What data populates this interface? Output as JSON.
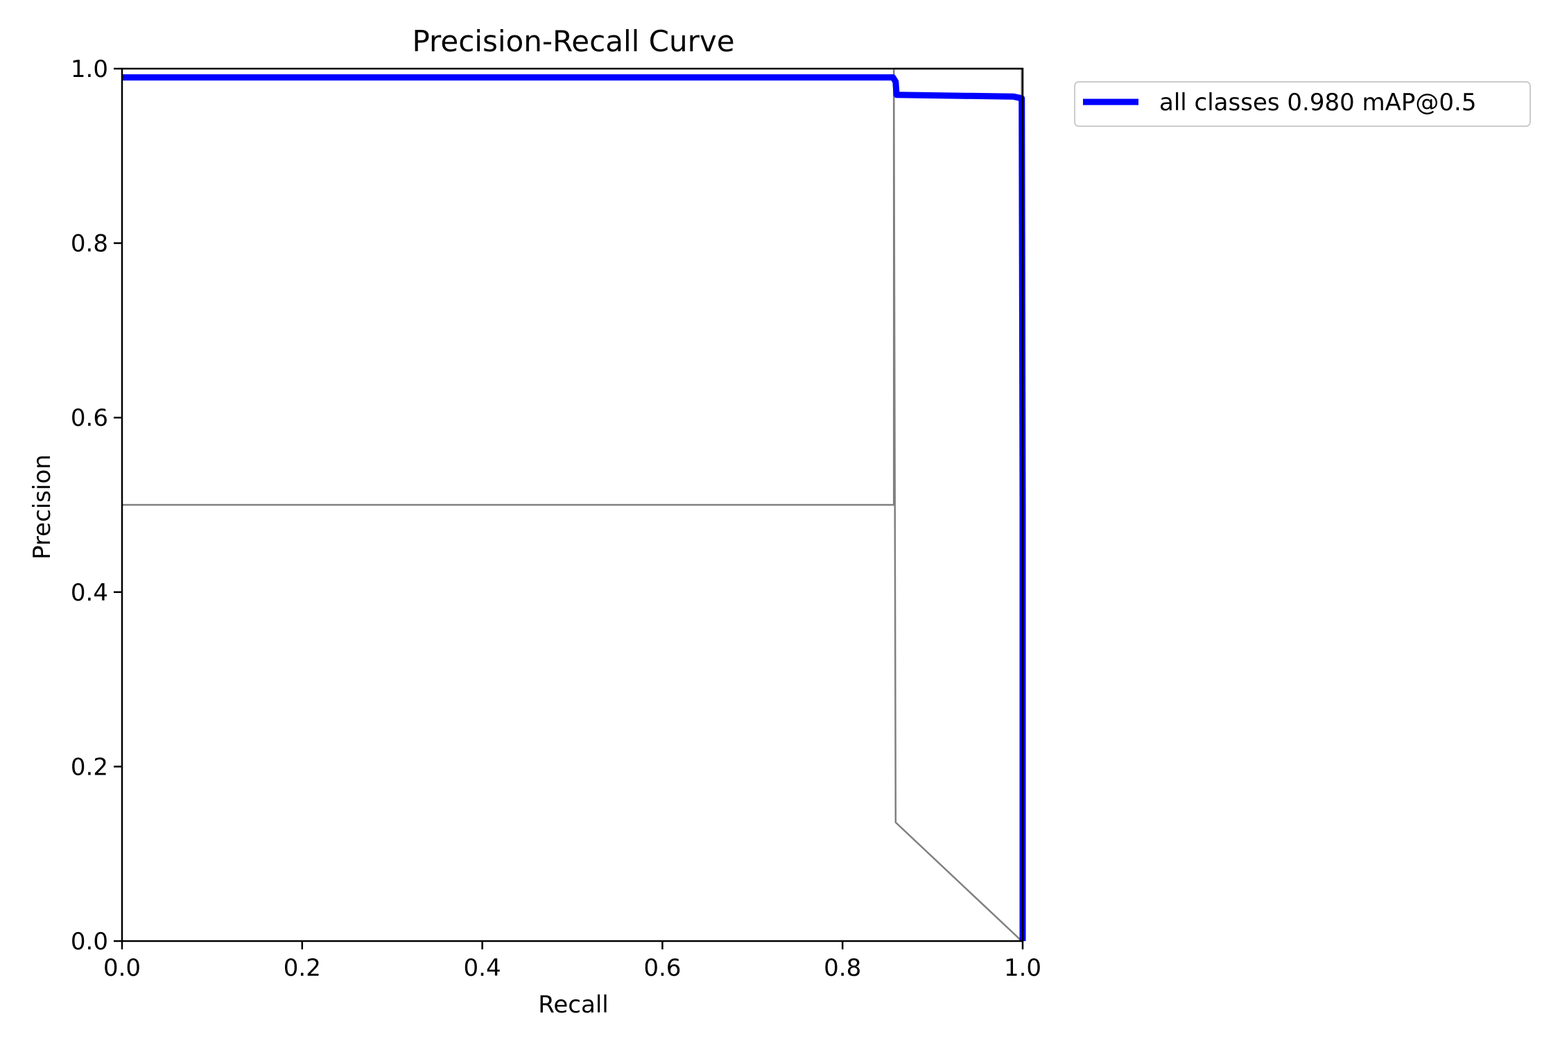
{
  "chart_data": {
    "type": "line",
    "title": "Precision-Recall Curve",
    "xlabel": "Recall",
    "ylabel": "Precision",
    "xlim": [
      0.0,
      1.0
    ],
    "ylim": [
      0.0,
      1.0
    ],
    "xticks": [
      0.0,
      0.2,
      0.4,
      0.6,
      0.8,
      1.0
    ],
    "yticks": [
      0.0,
      0.2,
      0.4,
      0.6,
      0.8,
      1.0
    ],
    "xtick_labels": [
      "0.0",
      "0.2",
      "0.4",
      "0.6",
      "0.8",
      "1.0"
    ],
    "ytick_labels": [
      "0.0",
      "0.2",
      "0.4",
      "0.6",
      "0.8",
      "1.0"
    ],
    "grid": false,
    "legend_position": "upper-right-outside",
    "series": [
      {
        "name": "all classes 0.980 mAP@0.5",
        "color": "#0000ff",
        "x": [
          0.0,
          0.856,
          0.859,
          0.86,
          0.99,
          0.999,
          1.0,
          1.0
        ],
        "y": [
          0.99,
          0.99,
          0.985,
          0.97,
          0.968,
          0.966,
          0.5,
          0.0
        ]
      },
      {
        "color": "#808080",
        "x": [
          0.0,
          0.857,
          0.857,
          0.999,
          0.999
        ],
        "y": [
          0.5,
          0.5,
          1.0,
          1.0,
          0.5
        ]
      },
      {
        "color": "#808080",
        "x": [
          0.857,
          0.859,
          0.999,
          0.999
        ],
        "y": [
          1.0,
          0.136,
          0.0,
          1.0
        ]
      }
    ]
  }
}
